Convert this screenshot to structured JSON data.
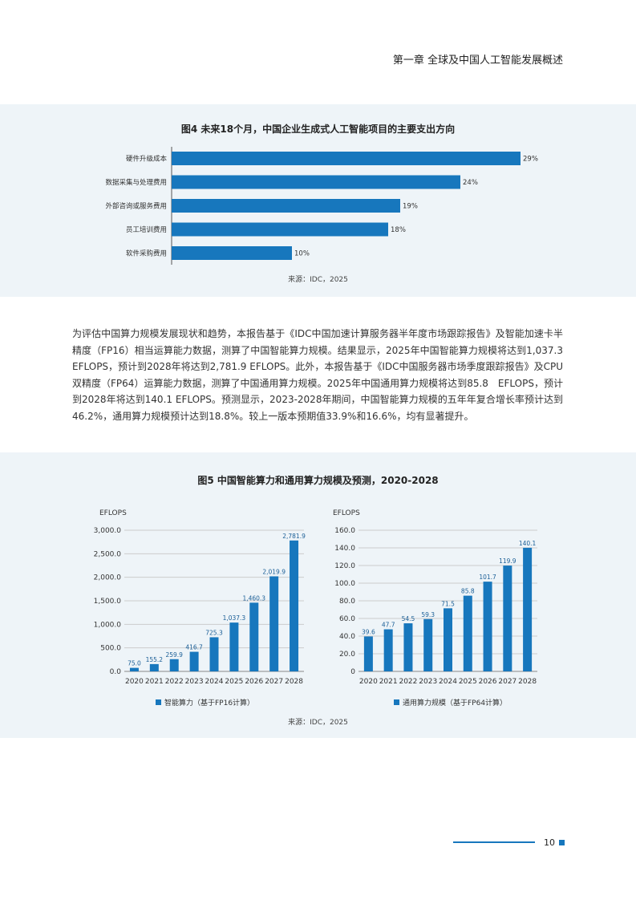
{
  "header": {
    "chapter_title": "第一章 全球及中国人工智能发展概述"
  },
  "figure4": {
    "title": "图4 未来18个月，中国企业生成式人工智能项目的主要支出方向",
    "source": "来源：IDC，2025"
  },
  "body_text": "为评估中国算力规模发展现状和趋势，本报告基于《IDC中国加速计算服务器半年度市场跟踪报告》及智能加速卡半精度（FP16）相当运算能力数据，测算了中国智能算力规模。结果显示，2025年中国智能算力规模将达到1,037.3 EFLOPS，预计到2028年将达到2,781.9 EFLOPS。此外，本报告基于《IDC中国服务器市场季度跟踪报告》及CPU双精度（FP64）运算能力数据，测算了中国通用算力规模。2025年中国通用算力规模将达到85.8　EFLOPS，预计到2028年将达到140.1 EFLOPS。预测显示，2023-2028年期间，中国智能算力规模的五年年复合增长率预计达到46.2%，通用算力规模预计达到18.8%。较上一版本预期值33.9%和16.6%，均有显著提升。",
  "figure5": {
    "title": "图5 中国智能算力和通用算力规模及预测，2020-2028",
    "source": "来源：IDC，2025"
  },
  "footer": {
    "page_number": "10"
  },
  "colors": {
    "accent": "#1777bd",
    "panel_bg": "#eef4f8"
  },
  "chart_data": [
    {
      "type": "bar",
      "orientation": "horizontal",
      "title": "图4 未来18个月，中国企业生成式人工智能项目的主要支出方向",
      "categories": [
        "硬件升级成本",
        "数据采集与处理费用",
        "外部咨询或服务费用",
        "员工培训费用",
        "软件采购费用"
      ],
      "values": [
        29,
        24,
        19,
        18,
        10
      ],
      "value_labels": [
        "29%",
        "24%",
        "19%",
        "18%",
        "10%"
      ],
      "xlim": [
        0,
        30
      ],
      "color": "#1777bd",
      "grid": false,
      "legend": "none"
    },
    {
      "type": "bar",
      "title": "",
      "ylabel": "EFLOPS",
      "categories": [
        "2020",
        "2021",
        "2022",
        "2023",
        "2024",
        "2025",
        "2026",
        "2027",
        "2028"
      ],
      "values": [
        75.0,
        155.2,
        259.9,
        416.7,
        725.3,
        1037.3,
        1460.3,
        2019.9,
        2781.9
      ],
      "value_labels": [
        "75.0",
        "155.2",
        "259.9",
        "416.7",
        "725.3",
        "1,037.3",
        "1,460.3",
        "2,019.9",
        "2,781.9"
      ],
      "ylim": [
        0,
        3000
      ],
      "yticks": [
        0,
        500,
        1000,
        1500,
        2000,
        2500,
        3000
      ],
      "ytick_labels": [
        "0.0",
        "500.0",
        "1,000.0",
        "1,500.0",
        "2,000.0",
        "2,500.0",
        "3,000.0"
      ],
      "legend_label": "智能算力（基于FP16计算）",
      "legend": "bottom",
      "color": "#1777bd",
      "grid": true
    },
    {
      "type": "bar",
      "title": "",
      "ylabel": "EFLOPS",
      "categories": [
        "2020",
        "2021",
        "2022",
        "2023",
        "2024",
        "2025",
        "2026",
        "2027",
        "2028"
      ],
      "values": [
        39.6,
        47.7,
        54.5,
        59.3,
        71.5,
        85.8,
        101.7,
        119.9,
        140.1
      ],
      "value_labels": [
        "39.6",
        "47.7",
        "54.5",
        "59.3",
        "71.5",
        "85.8",
        "101.7",
        "119.9",
        "140.1"
      ],
      "ylim": [
        0,
        160
      ],
      "yticks": [
        0,
        20,
        40,
        60,
        80,
        100,
        120,
        140,
        160
      ],
      "ytick_labels": [
        "0",
        "20.0",
        "40.0",
        "60.0",
        "80.0",
        "100.0",
        "120.0",
        "140.0",
        "160.0"
      ],
      "legend_label": "通用算力规模（基于FP64计算）",
      "legend": "bottom",
      "color": "#1777bd",
      "grid": true
    }
  ]
}
